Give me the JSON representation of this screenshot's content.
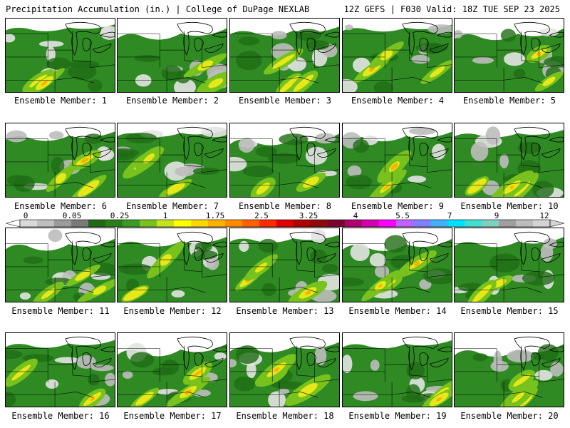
{
  "header": {
    "title": "Precipitation Accumulation (in.) | College of DuPage NEXLAB",
    "run_info": "12Z GEFS | F030 Valid: 18Z TUE SEP 23 2025"
  },
  "colorbar": {
    "tick_labels": [
      "0",
      "0.05",
      "0.25",
      "1",
      "1.75",
      "2.5",
      "3.25",
      "4",
      "5.5",
      "7",
      "9",
      "12"
    ],
    "colors": [
      "#d9d9d9",
      "#bfbfbf",
      "#9c9c9c",
      "#7a7a7a",
      "#1f6b14",
      "#2a7f1c",
      "#3a9a23",
      "#78c21d",
      "#c8e21a",
      "#ffff00",
      "#ffd700",
      "#ffb000",
      "#ff8c00",
      "#ff6000",
      "#ff2a00",
      "#e00000",
      "#b00000",
      "#8b0a0a",
      "#7a0030",
      "#b0006e",
      "#d400b0",
      "#ff00ff",
      "#c060ff",
      "#8080ff",
      "#40b0ff",
      "#00e0ff",
      "#40e0d0",
      "#7fd0c0",
      "#a0a0a0",
      "#bcbcbc",
      "#d4d4d4"
    ]
  },
  "members": [
    {
      "label": "Ensemble Member: 1"
    },
    {
      "label": "Ensemble Member: 2"
    },
    {
      "label": "Ensemble Member: 3"
    },
    {
      "label": "Ensemble Member: 4"
    },
    {
      "label": "Ensemble Member: 5"
    },
    {
      "label": "Ensemble Member: 6"
    },
    {
      "label": "Ensemble Member: 7"
    },
    {
      "label": "Ensemble Member: 8"
    },
    {
      "label": "Ensemble Member: 9"
    },
    {
      "label": "Ensemble Member: 10"
    },
    {
      "label": "Ensemble Member: 11"
    },
    {
      "label": "Ensemble Member: 12"
    },
    {
      "label": "Ensemble Member: 13"
    },
    {
      "label": "Ensemble Member: 14"
    },
    {
      "label": "Ensemble Member: 15"
    },
    {
      "label": "Ensemble Member: 16"
    },
    {
      "label": "Ensemble Member: 17"
    },
    {
      "label": "Ensemble Member: 18"
    },
    {
      "label": "Ensemble Member: 19"
    },
    {
      "label": "Ensemble Member: 20"
    }
  ]
}
